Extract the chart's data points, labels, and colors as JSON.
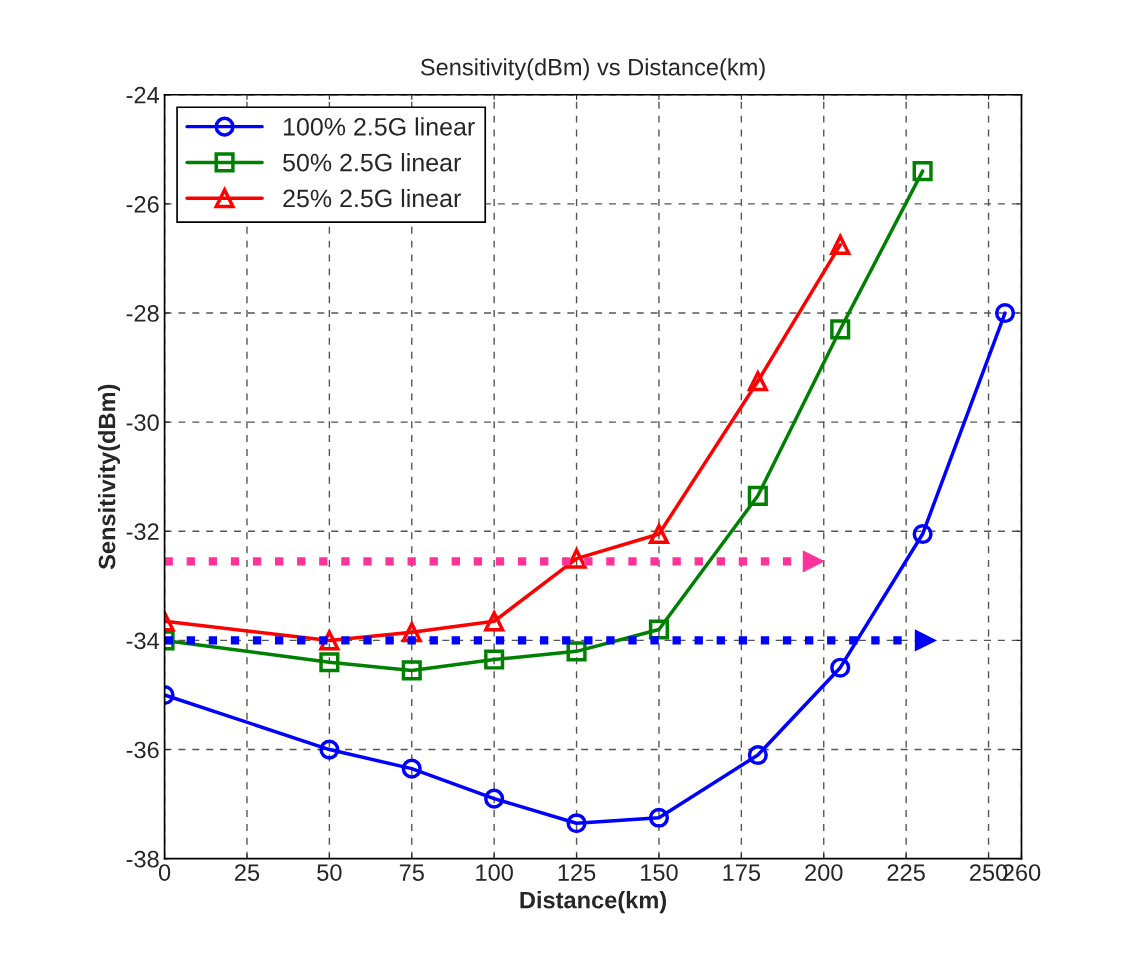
{
  "chart_data": {
    "type": "line",
    "title": "Sensitivity(dBm) vs Distance(km)",
    "xlabel": "Distance(km)",
    "ylabel": "Sensitivity(dBm)",
    "x": [
      0,
      50,
      75,
      100,
      125,
      150,
      180,
      205,
      230,
      255
    ],
    "series": [
      {
        "name": "100% 2.5G linear",
        "color": "#0000ff",
        "marker": "circle",
        "values": [
          -35.0,
          -36.0,
          -36.35,
          -36.9,
          -37.35,
          -37.25,
          -36.1,
          -34.5,
          -32.05,
          -28.0
        ]
      },
      {
        "name": "50% 2.5G linear",
        "color": "#008000",
        "marker": "square",
        "values": [
          -34.0,
          -34.4,
          -34.55,
          -34.35,
          -34.2,
          -33.8,
          -31.35,
          -28.3,
          -25.4,
          null
        ]
      },
      {
        "name": "25% 2.5G linear",
        "color": "#ff0000",
        "marker": "triangle",
        "values": [
          -33.65,
          -34.0,
          -33.85,
          -33.65,
          -32.5,
          -32.05,
          -29.25,
          -26.75,
          null,
          null
        ]
      },
      {
        "color": "#ff3399",
        "x": [
          0,
          197
        ],
        "values": [
          -32.55,
          -32.55
        ],
        "marker": "triangle",
        "line_style": "dotted"
      },
      {
        "color": "#0000ff",
        "x": [
          0,
          231
        ],
        "values": [
          -34.0,
          -34.0
        ],
        "marker": "triangle",
        "line_style": "dotted"
      }
    ],
    "xlim": [
      0,
      260
    ],
    "xticks": [
      0,
      25,
      50,
      75,
      100,
      125,
      150,
      175,
      200,
      225,
      250,
      260
    ],
    "ylim": [
      -38,
      -24
    ],
    "yticks": [
      -38,
      -36,
      -34,
      -32,
      -30,
      -28,
      -26,
      -24
    ],
    "grid": true,
    "legend": "top left"
  }
}
